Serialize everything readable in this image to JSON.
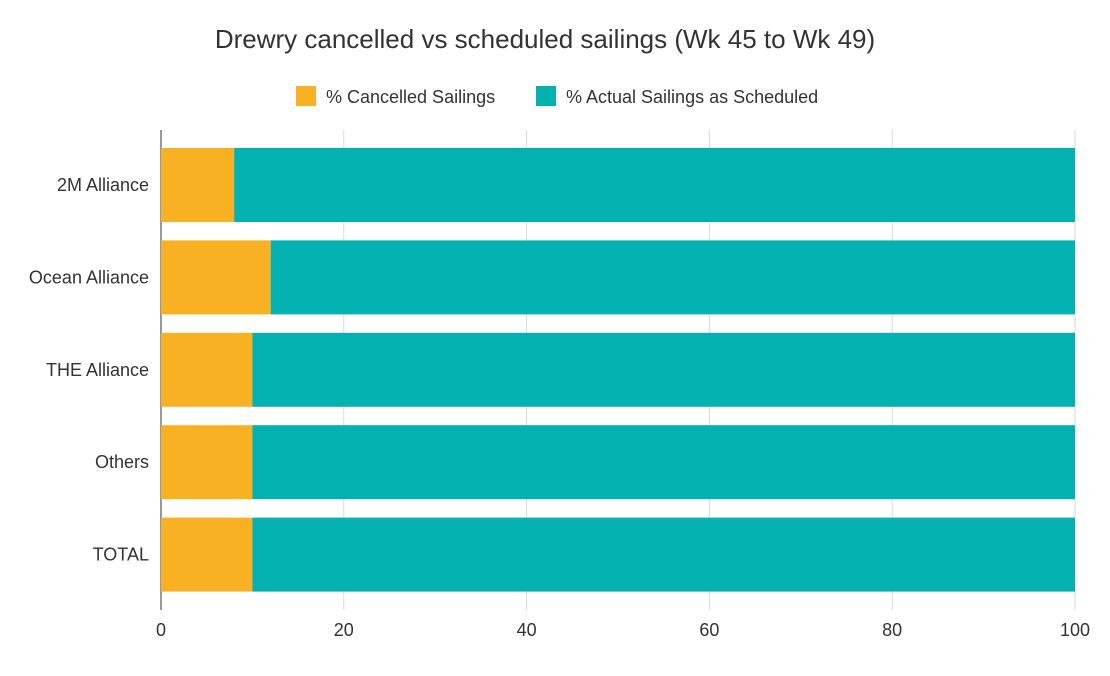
{
  "chart_data": {
    "type": "bar",
    "orientation": "horizontal",
    "stacked": true,
    "title": "Drewry cancelled vs scheduled sailings (Wk 45 to Wk 49)",
    "xlabel": "",
    "ylabel": "",
    "categories": [
      "2M Alliance",
      "Ocean Alliance",
      "THE Alliance",
      "Others",
      "TOTAL"
    ],
    "series": [
      {
        "name": "% Cancelled Sailings",
        "color": "#f8b122",
        "values": [
          8,
          12,
          10,
          10,
          10
        ]
      },
      {
        "name": "% Actual Sailings as Scheduled",
        "color": "#04b1b1",
        "values": [
          92,
          88,
          90,
          90,
          90
        ]
      }
    ],
    "xlim": [
      0,
      100
    ],
    "xticks": [
      0,
      20,
      40,
      60,
      80,
      100
    ],
    "grid": true,
    "legend": "top-center"
  }
}
